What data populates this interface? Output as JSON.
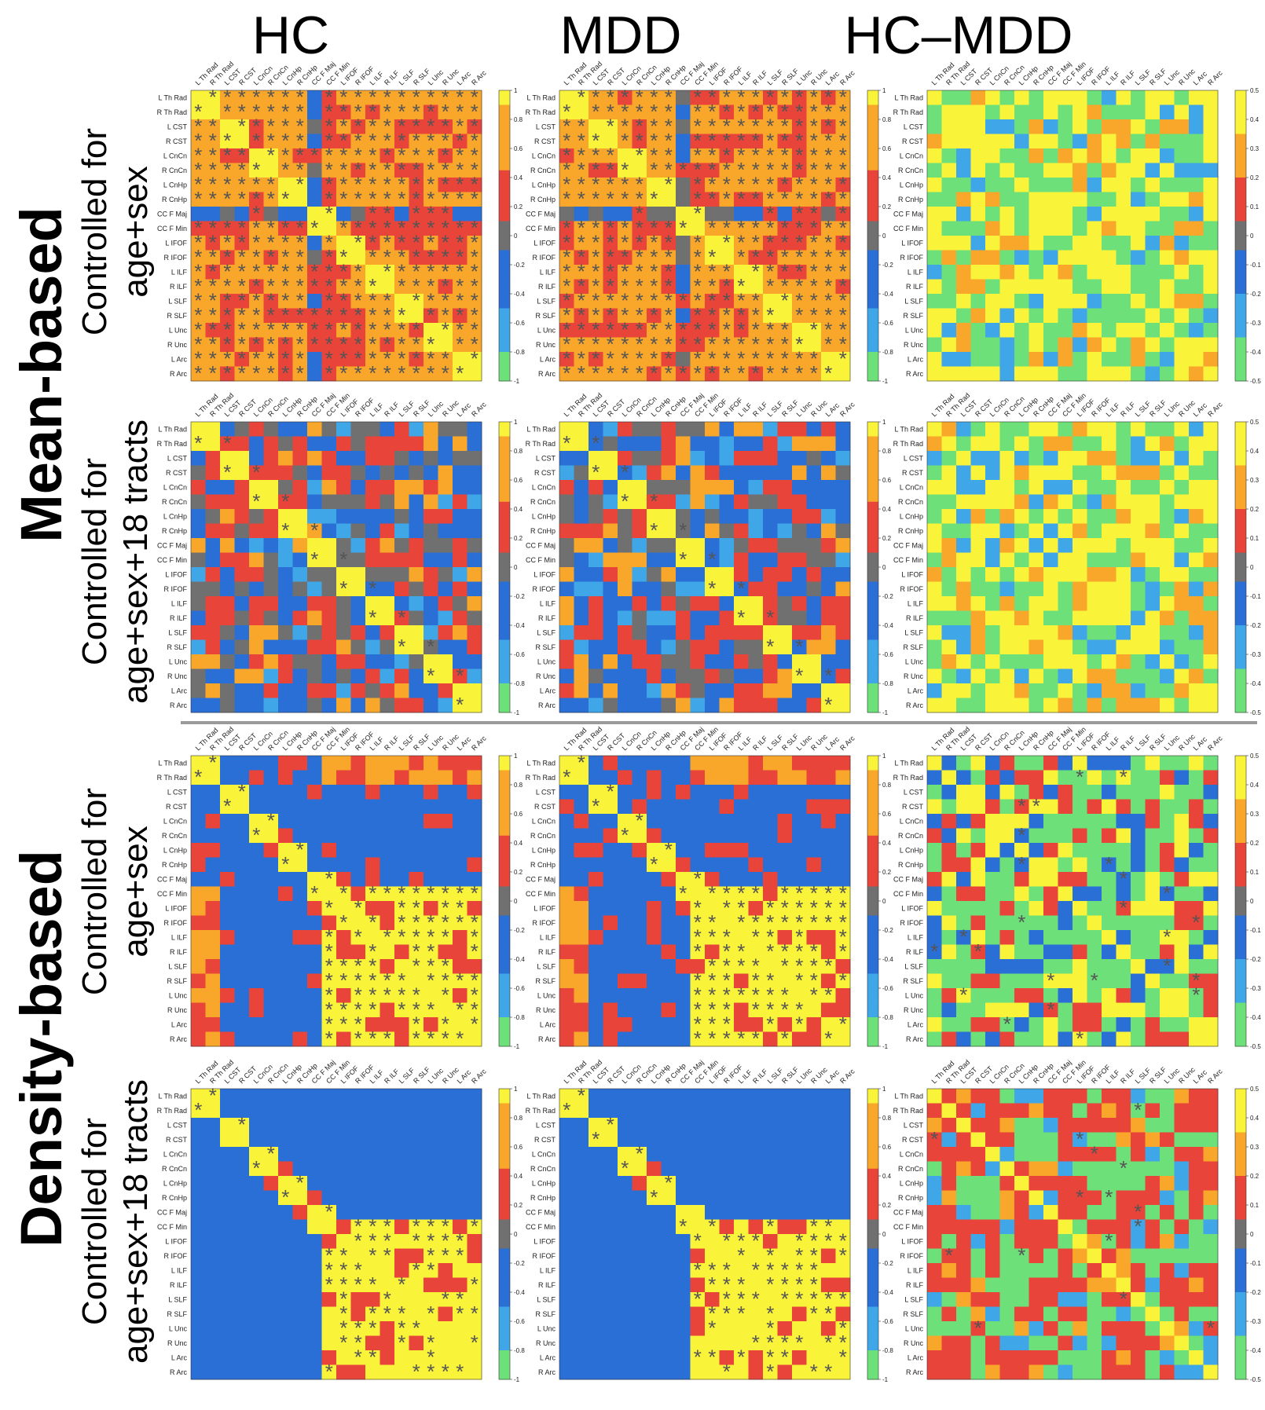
{
  "column_titles": [
    "HC",
    "MDD",
    "HC–MDD"
  ],
  "method_labels": [
    "Mean-based",
    "Density-based"
  ],
  "row_labels": [
    [
      "Controlled for",
      "age+sex"
    ],
    [
      "Controlled for",
      "age+sex+18 tracts"
    ],
    [
      "Controlled for",
      "age+sex"
    ],
    [
      "Controlled for",
      "age+sex+18 tracts"
    ]
  ],
  "colors": {
    "positive_high": "#f9f33a",
    "positive_mid": "#f9a72a",
    "positive_low": "#e8443a",
    "near_zero": "#707070",
    "negative_low": "#2a6fd6",
    "negative_mid": "#3fa6e8",
    "negative_high": "#6ee07a",
    "asterisk": "#555555"
  },
  "chart_data": {
    "type": "heatmap",
    "tracts": [
      "L Th Rad",
      "R Th Rad",
      "L CST",
      "R CST",
      "L CnCn",
      "R CnCn",
      "L CnHp",
      "R CnHp",
      "CC F Maj",
      "CC F Min",
      "L IFOF",
      "R IFOF",
      "L ILF",
      "R ILF",
      "L SLF",
      "R SLF",
      "L Unc",
      "R Unc",
      "L Arc",
      "R Arc"
    ],
    "colorbars": {
      "group": {
        "ticks": [
          "1",
          "0.8",
          "0.6",
          "0.4",
          "0.2",
          "0",
          "-0.2",
          "-0.4",
          "-0.6",
          "-0.8",
          "-1"
        ],
        "range": [
          -1,
          1
        ]
      },
      "difference": {
        "ticks": [
          "0.5",
          "0.4",
          "0.3",
          "0.2",
          "0.1",
          "0",
          "-0.1",
          "-0.2",
          "-0.3",
          "-0.4",
          "-0.5"
        ],
        "range": [
          -0.5,
          0.5
        ]
      }
    },
    "panels": [
      {
        "row": 0,
        "col": 0,
        "kind": "group",
        "pattern": "mean_hc",
        "significance": "dense"
      },
      {
        "row": 0,
        "col": 1,
        "kind": "group",
        "pattern": "mean_mdd",
        "significance": "dense"
      },
      {
        "row": 0,
        "col": 2,
        "kind": "difference",
        "pattern": "diff_mean_a",
        "significance": "none"
      },
      {
        "row": 1,
        "col": 0,
        "kind": "group",
        "pattern": "partial_hc",
        "significance": "sparse"
      },
      {
        "row": 1,
        "col": 1,
        "kind": "group",
        "pattern": "partial_mdd",
        "significance": "sparse"
      },
      {
        "row": 1,
        "col": 2,
        "kind": "difference",
        "pattern": "diff_mean_b",
        "significance": "none"
      },
      {
        "row": 2,
        "col": 0,
        "kind": "group",
        "pattern": "density_hc",
        "significance": "block"
      },
      {
        "row": 2,
        "col": 1,
        "kind": "group",
        "pattern": "density_mdd",
        "significance": "block"
      },
      {
        "row": 2,
        "col": 2,
        "kind": "difference",
        "pattern": "diff_density_a",
        "significance": "few"
      },
      {
        "row": 3,
        "col": 0,
        "kind": "group",
        "pattern": "density_partial_hc",
        "significance": "block_sparse"
      },
      {
        "row": 3,
        "col": 1,
        "kind": "group",
        "pattern": "density_partial_mdd",
        "significance": "block_sparse"
      },
      {
        "row": 3,
        "col": 2,
        "kind": "difference",
        "pattern": "diff_density_b",
        "significance": "few"
      }
    ]
  }
}
